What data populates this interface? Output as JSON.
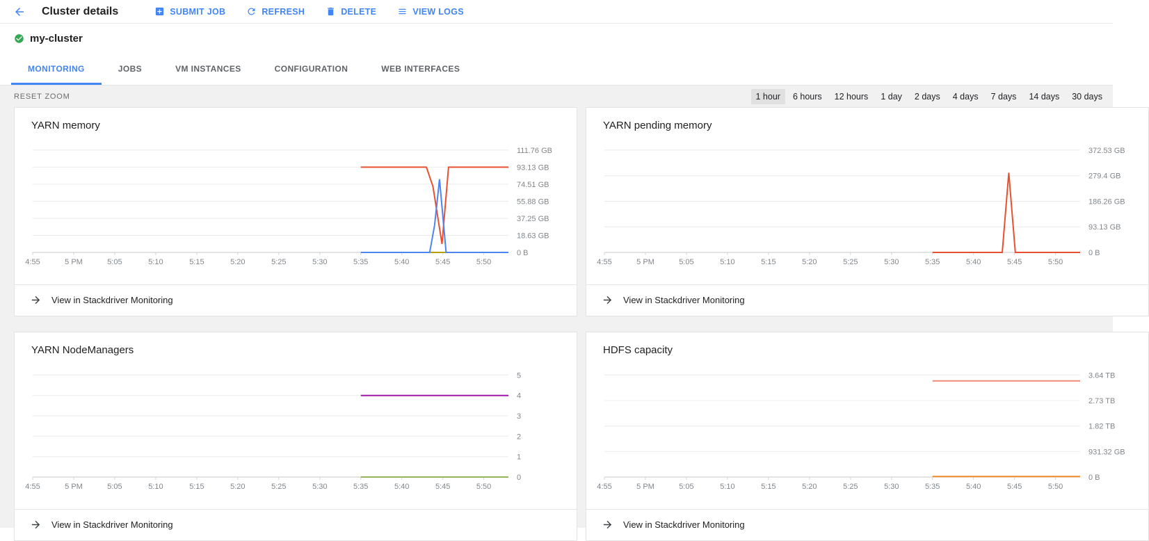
{
  "toolbar": {
    "title": "Cluster details",
    "buttons": [
      {
        "label": "SUBMIT JOB",
        "icon": "plus-square-icon"
      },
      {
        "label": "REFRESH",
        "icon": "refresh-icon"
      },
      {
        "label": "DELETE",
        "icon": "trash-icon"
      },
      {
        "label": "VIEW LOGS",
        "icon": "list-icon"
      }
    ]
  },
  "cluster": {
    "name": "my-cluster",
    "status": "ok",
    "status_color": "#34a853"
  },
  "tabs": [
    {
      "label": "MONITORING",
      "active": true
    },
    {
      "label": "JOBS",
      "active": false
    },
    {
      "label": "VM INSTANCES",
      "active": false
    },
    {
      "label": "CONFIGURATION",
      "active": false
    },
    {
      "label": "WEB INTERFACES",
      "active": false
    }
  ],
  "controls": {
    "reset_zoom": "RESET ZOOM",
    "ranges": [
      "1 hour",
      "6 hours",
      "12 hours",
      "1 day",
      "2 days",
      "4 days",
      "7 days",
      "14 days",
      "30 days"
    ],
    "selected_range": "1 hour"
  },
  "footer_link": "View in Stackdriver Monitoring",
  "colors": {
    "accent_blue": "#4285f4",
    "status_green": "#34a853"
  },
  "chart_data": [
    {
      "type": "line",
      "title": "YARN memory",
      "xmax": 58,
      "x_ticks": [
        "4:55",
        "5 PM",
        "5:05",
        "5:10",
        "5:15",
        "5:20",
        "5:25",
        "5:30",
        "5:35",
        "5:40",
        "5:45",
        "5:50"
      ],
      "ymax": 117,
      "y_ticks": [
        {
          "v": 111.76,
          "label": "111.76 GB"
        },
        {
          "v": 93.13,
          "label": "93.13 GB"
        },
        {
          "v": 74.51,
          "label": "74.51 GB"
        },
        {
          "v": 55.88,
          "label": "55.88 GB"
        },
        {
          "v": 37.25,
          "label": "37.25 GB"
        },
        {
          "v": 18.63,
          "label": "18.63 GB"
        },
        {
          "v": 0,
          "label": "0 B"
        }
      ],
      "series": [
        {
          "name": "red",
          "color": "#e8502f",
          "points": [
            [
              40,
              93.13
            ],
            [
              48,
              93.13
            ],
            [
              48.8,
              72
            ],
            [
              49.9,
              9.3
            ],
            [
              50.7,
              93.13
            ],
            [
              58,
              93.13
            ]
          ]
        },
        {
          "name": "olive",
          "color": "#b7a100",
          "points": [
            [
              47.5,
              0
            ],
            [
              50.5,
              0
            ]
          ]
        },
        {
          "name": "blue",
          "color": "#4e83f2",
          "points": [
            [
              40,
              0
            ],
            [
              48.4,
              0
            ],
            [
              49.0,
              30
            ],
            [
              49.6,
              80
            ],
            [
              50.4,
              0
            ],
            [
              58,
              0
            ]
          ]
        }
      ],
      "grid": true,
      "legend": "none"
    },
    {
      "type": "line",
      "title": "YARN pending memory",
      "xmax": 58,
      "x_ticks": [
        "4:55",
        "5 PM",
        "5:05",
        "5:10",
        "5:15",
        "5:20",
        "5:25",
        "5:30",
        "5:35",
        "5:40",
        "5:45",
        "5:50"
      ],
      "ymax": 390,
      "y_ticks": [
        {
          "v": 372.53,
          "label": "372.53 GB"
        },
        {
          "v": 279.4,
          "label": "279.4 GB"
        },
        {
          "v": 186.26,
          "label": "186.26 GB"
        },
        {
          "v": 93.13,
          "label": "93.13 GB"
        },
        {
          "v": 0,
          "label": "0 B"
        }
      ],
      "series": [
        {
          "name": "red",
          "color": "#e8502f",
          "points": [
            [
              40,
              0
            ],
            [
              48.5,
              0
            ],
            [
              49.3,
              290
            ],
            [
              50.1,
              0
            ],
            [
              58,
              0
            ]
          ]
        }
      ],
      "grid": true,
      "legend": "none"
    },
    {
      "type": "line",
      "title": "YARN NodeManagers",
      "xmax": 58,
      "x_ticks": [
        "4:55",
        "5 PM",
        "5:05",
        "5:10",
        "5:15",
        "5:20",
        "5:25",
        "5:30",
        "5:35",
        "5:40",
        "5:45",
        "5:50"
      ],
      "ymax": 5.25,
      "y_ticks": [
        {
          "v": 5,
          "label": "5"
        },
        {
          "v": 4,
          "label": "4"
        },
        {
          "v": 3,
          "label": "3"
        },
        {
          "v": 2,
          "label": "2"
        },
        {
          "v": 1,
          "label": "1"
        },
        {
          "v": 0,
          "label": "0"
        }
      ],
      "series": [
        {
          "name": "purple",
          "color": "#a216ad",
          "points": [
            [
              40,
              4
            ],
            [
              58,
              4
            ]
          ]
        },
        {
          "name": "green",
          "color": "#92b65a",
          "points": [
            [
              40,
              0
            ],
            [
              58,
              0
            ]
          ]
        }
      ],
      "grid": true,
      "legend": "none"
    },
    {
      "type": "line",
      "title": "HDFS capacity",
      "xmax": 58,
      "x_ticks": [
        "4:55",
        "5 PM",
        "5:05",
        "5:10",
        "5:15",
        "5:20",
        "5:25",
        "5:30",
        "5:35",
        "5:40",
        "5:45",
        "5:50"
      ],
      "ymax": 3911,
      "y_ticks": [
        {
          "v": 3725.28,
          "label": "3.64 TB"
        },
        {
          "v": 2793.96,
          "label": "2.73 TB"
        },
        {
          "v": 1862.64,
          "label": "1.82 TB"
        },
        {
          "v": 931.32,
          "label": "931.32 GB"
        },
        {
          "v": 0,
          "label": "0 B"
        }
      ],
      "series": [
        {
          "name": "salmon",
          "color": "#f08a76",
          "points": [
            [
              40,
              3510
            ],
            [
              58,
              3510
            ]
          ]
        },
        {
          "name": "orange",
          "color": "#f08c28",
          "points": [
            [
              40,
              18
            ],
            [
              58,
              18
            ]
          ]
        }
      ],
      "grid": true,
      "legend": "none"
    }
  ]
}
